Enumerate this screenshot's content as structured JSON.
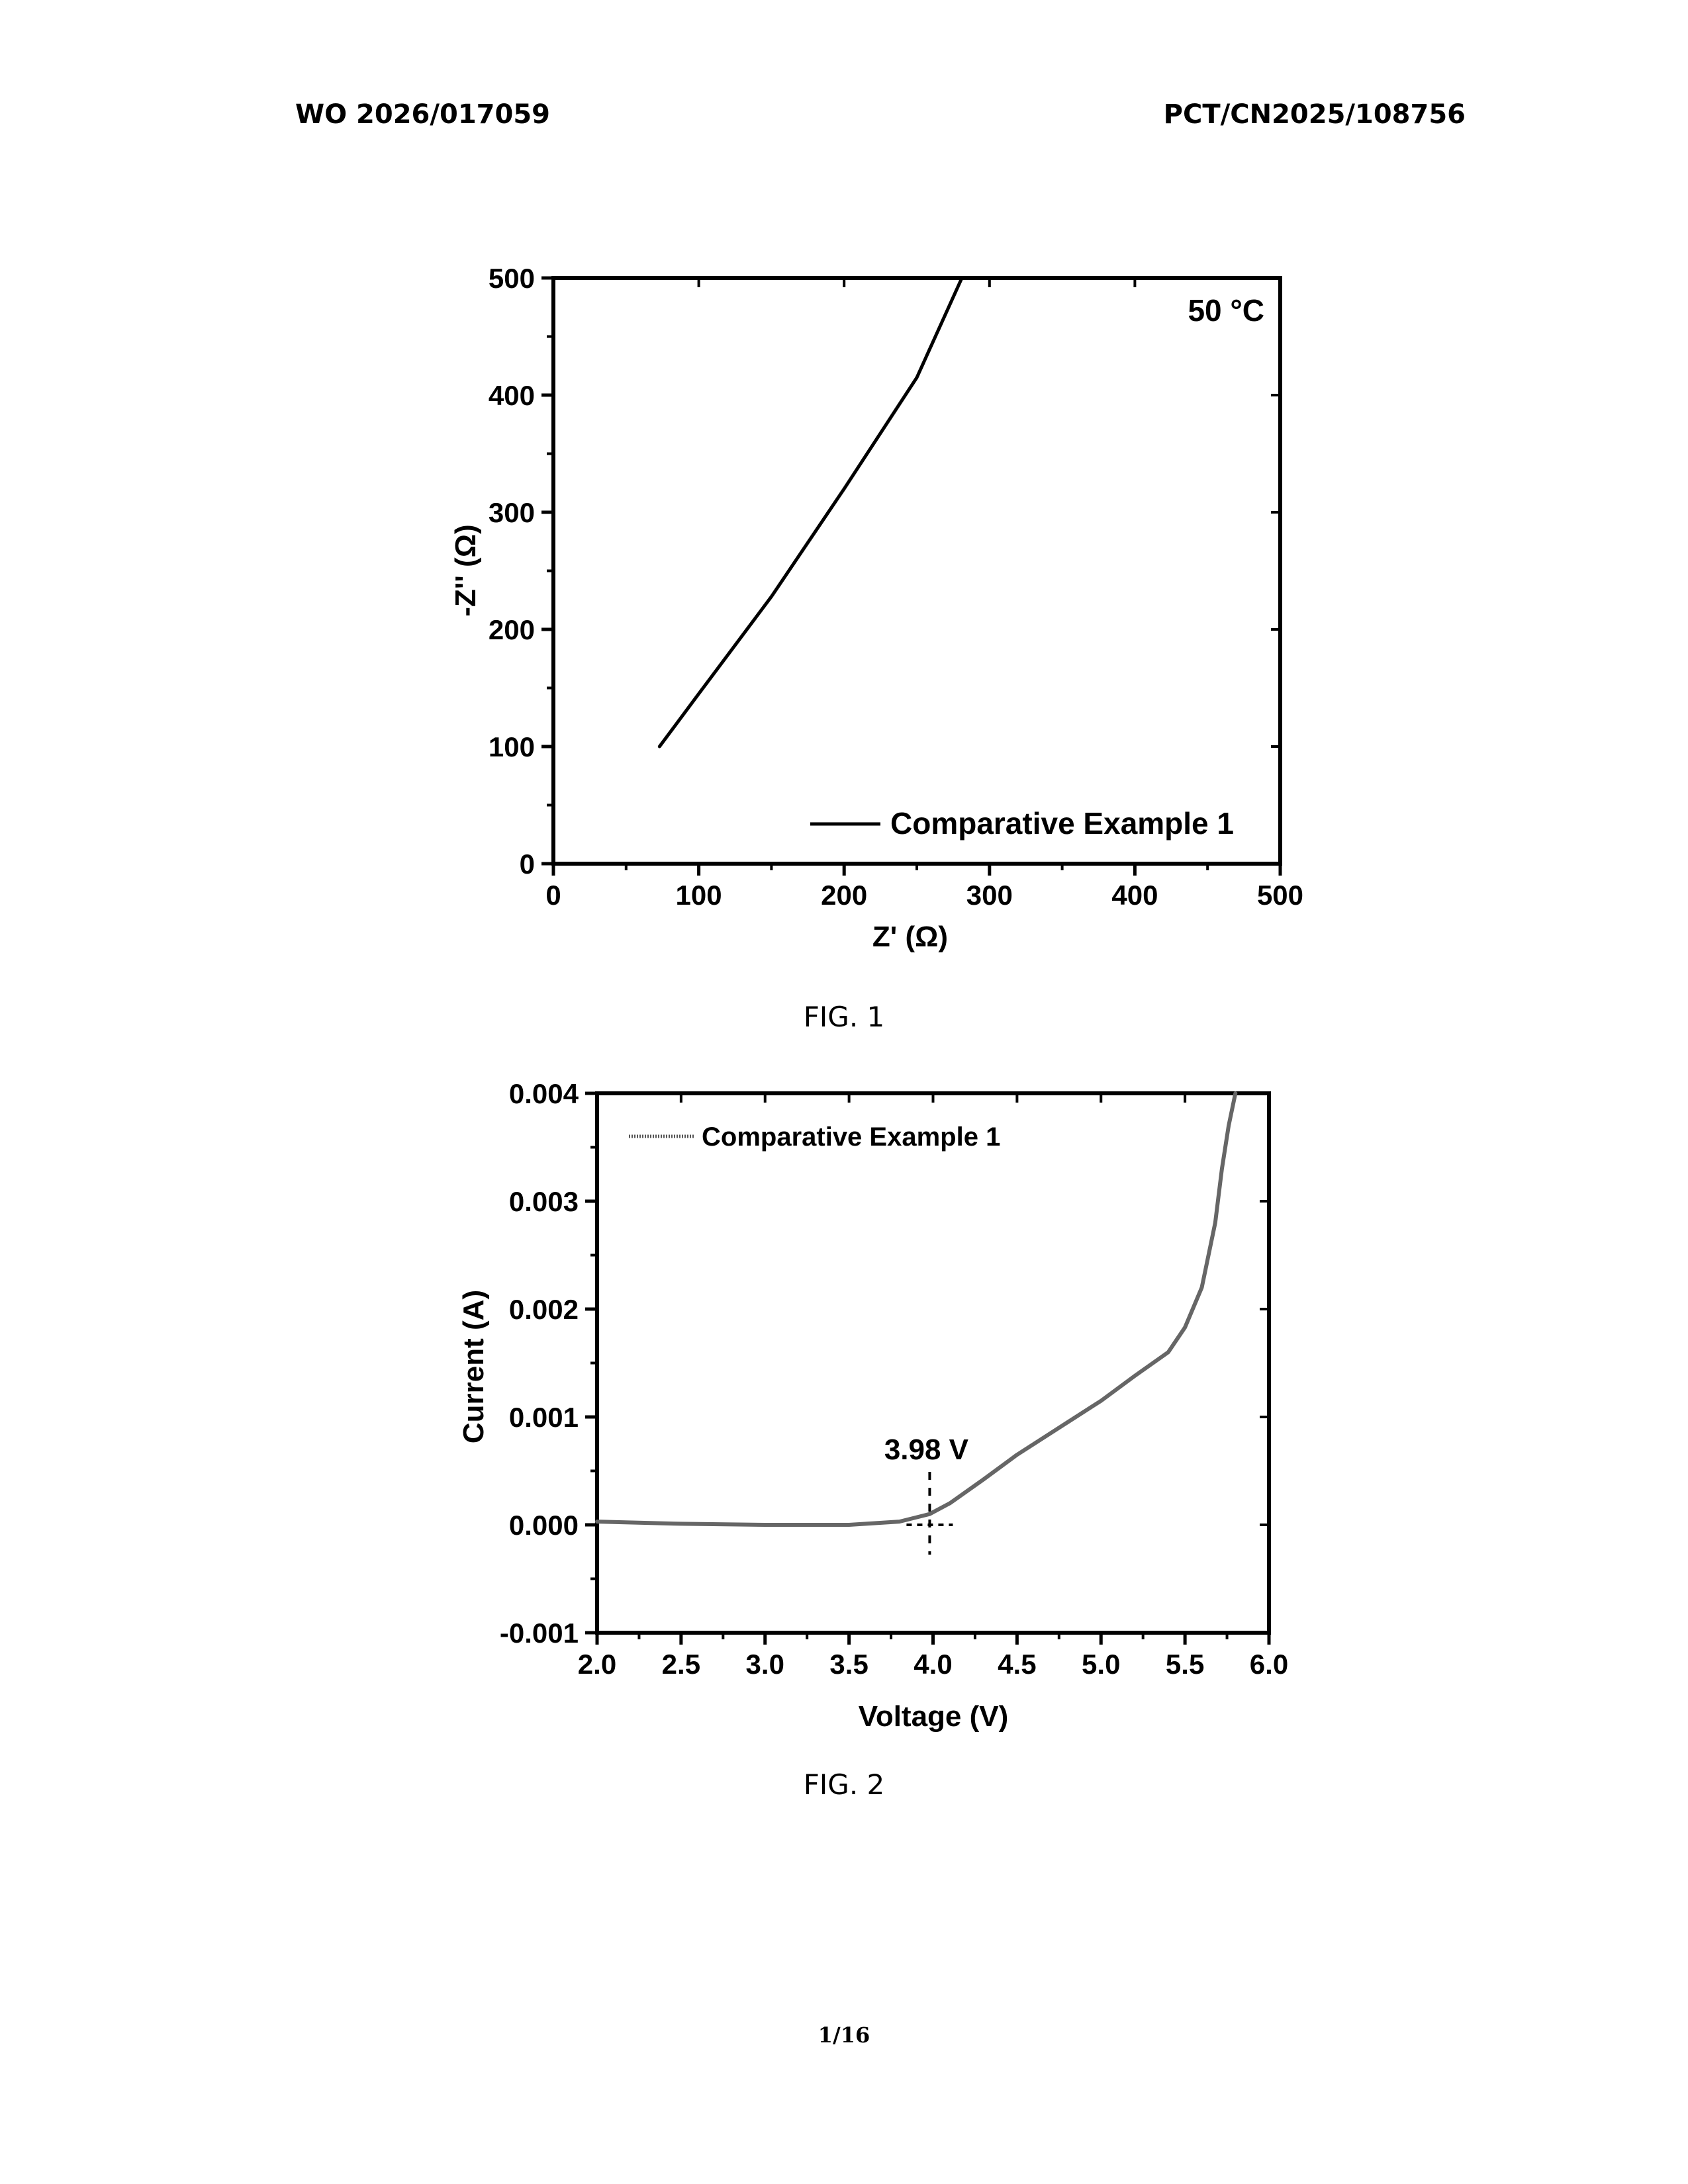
{
  "header": {
    "left": "WO 2026/017059",
    "right": "PCT/CN2025/108756"
  },
  "page_number": "1/16",
  "chart_data": [
    {
      "type": "line",
      "caption": "FIG. 1",
      "xlabel": "Z' (Ω)",
      "ylabel": "-Z'' (Ω)",
      "annotation": "50 °C",
      "xlim": [
        0,
        500
      ],
      "ylim": [
        0,
        500
      ],
      "xticks": [
        0,
        100,
        200,
        300,
        400,
        500
      ],
      "yticks": [
        0,
        100,
        200,
        300,
        400,
        500
      ],
      "grid": false,
      "legend_position": "bottom-right",
      "series": [
        {
          "name": "Comparative Example 1",
          "x": [
            73,
            100,
            150,
            200,
            250,
            281
          ],
          "y": [
            100,
            145,
            228,
            320,
            415,
            500
          ]
        }
      ]
    },
    {
      "type": "line",
      "caption": "FIG. 2",
      "xlabel": "Voltage (V)",
      "ylabel": "Current (A)",
      "annotation": "3.98 V",
      "annotation_x": 3.98,
      "xlim": [
        2.0,
        6.0
      ],
      "ylim": [
        -0.001,
        0.004
      ],
      "xticks": [
        "2.0",
        "2.5",
        "3.0",
        "3.5",
        "4.0",
        "4.5",
        "5.0",
        "5.5",
        "6.0"
      ],
      "yticks": [
        "-0.001",
        "0.000",
        "0.001",
        "0.002",
        "0.003",
        "0.004"
      ],
      "grid": false,
      "legend_position": "top-left",
      "series": [
        {
          "name": "Comparative Example 1",
          "x": [
            2.0,
            2.5,
            3.0,
            3.5,
            3.8,
            3.98,
            4.1,
            4.3,
            4.5,
            4.8,
            5.0,
            5.2,
            5.4,
            5.5,
            5.6,
            5.68,
            5.72,
            5.76,
            5.8
          ],
          "y": [
            3e-05,
            1e-05,
            0.0,
            0.0,
            3e-05,
            0.0001,
            0.0002,
            0.00042,
            0.00065,
            0.00095,
            0.00115,
            0.00138,
            0.0016,
            0.00183,
            0.0022,
            0.0028,
            0.0033,
            0.0037,
            0.004
          ]
        }
      ]
    }
  ]
}
